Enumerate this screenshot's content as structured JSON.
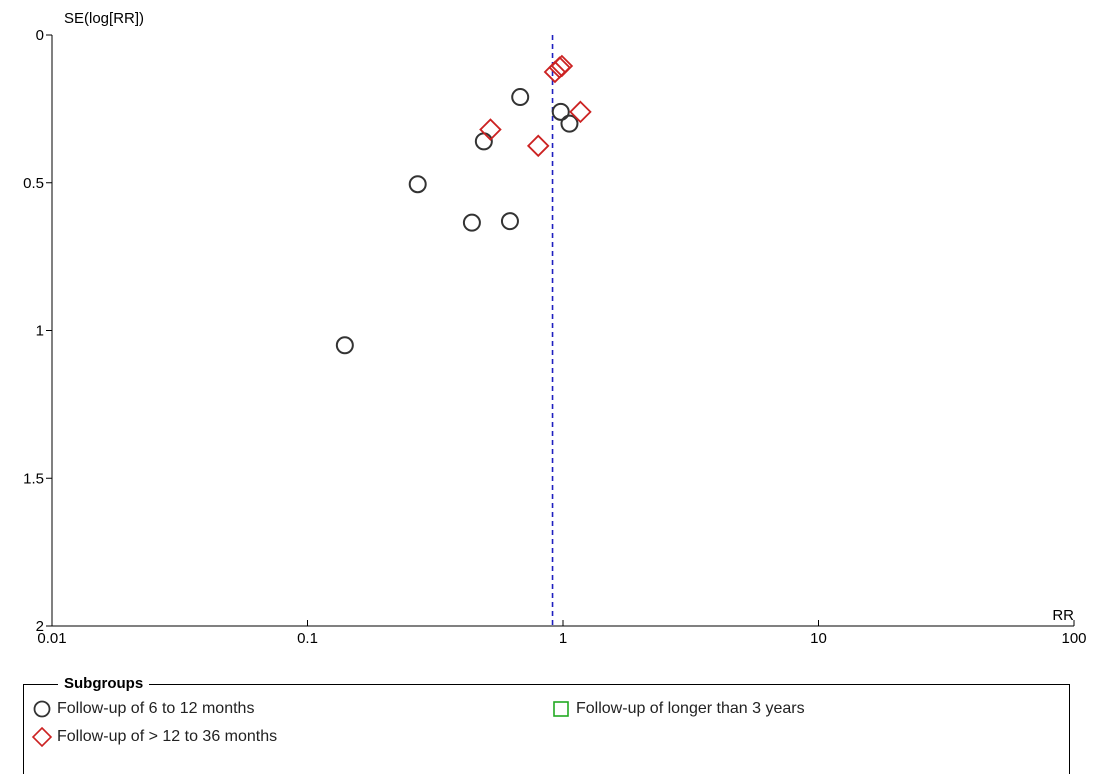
{
  "chart_data": {
    "type": "scatter",
    "title": "",
    "ylabel": "SE(log[RR])",
    "xlabel": "RR",
    "x_scale": "log",
    "xlim": [
      0.01,
      100
    ],
    "ylim": [
      0,
      2
    ],
    "y_inverted": true,
    "x_ticks": [
      0.01,
      0.1,
      1,
      10,
      100
    ],
    "x_tick_labels": [
      "0.01",
      "0.1",
      "1",
      "10",
      "100"
    ],
    "y_ticks": [
      0,
      0.5,
      1,
      1.5,
      2
    ],
    "y_tick_labels": [
      "0",
      "0.5",
      "1",
      "1.5",
      "2"
    ],
    "reference_line": {
      "x": 0.91,
      "style": "dashed",
      "color": "#1f1fbf"
    },
    "grid": false,
    "series": [
      {
        "name": "Follow-up of 6 to 12 months",
        "marker": "circle",
        "color": "#333333",
        "points": [
          {
            "x": 0.68,
            "y": 0.21
          },
          {
            "x": 0.98,
            "y": 0.26
          },
          {
            "x": 1.06,
            "y": 0.3
          },
          {
            "x": 0.49,
            "y": 0.36
          },
          {
            "x": 0.27,
            "y": 0.505
          },
          {
            "x": 0.44,
            "y": 0.635
          },
          {
            "x": 0.62,
            "y": 0.63
          },
          {
            "x": 0.14,
            "y": 1.05
          }
        ]
      },
      {
        "name": "Follow-up of > 12 to 36 months",
        "marker": "diamond",
        "color": "#cc2222",
        "points": [
          {
            "x": 0.99,
            "y": 0.105
          },
          {
            "x": 0.97,
            "y": 0.11
          },
          {
            "x": 0.93,
            "y": 0.125
          },
          {
            "x": 1.17,
            "y": 0.26
          },
          {
            "x": 0.52,
            "y": 0.32
          },
          {
            "x": 0.8,
            "y": 0.375
          }
        ]
      },
      {
        "name": "Follow-up of longer than 3 years",
        "marker": "square",
        "color": "#22aa22",
        "points": []
      }
    ]
  },
  "legend": {
    "title": "Subgroups"
  }
}
